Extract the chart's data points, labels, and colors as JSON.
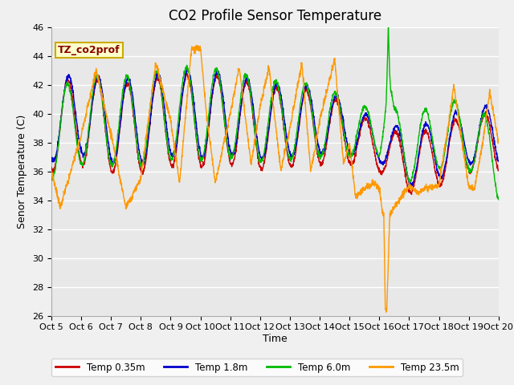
{
  "title": "CO2 Profile Sensor Temperature",
  "ylabel": "Senor Temperature (C)",
  "xlabel": "Time",
  "annotation_text": "TZ_co2prof",
  "annotation_color": "#880000",
  "annotation_bg": "#ffffcc",
  "annotation_border": "#ccaa00",
  "ylim": [
    26,
    46
  ],
  "yticks": [
    26,
    28,
    30,
    32,
    34,
    36,
    38,
    40,
    42,
    44,
    46
  ],
  "xlim": [
    0,
    15
  ],
  "xtick_positions": [
    0,
    1,
    2,
    3,
    4,
    5,
    6,
    7,
    8,
    9,
    10,
    11,
    12,
    13,
    14,
    15
  ],
  "xtick_labels": [
    "Oct 5",
    "Oct 6",
    "Oct 7",
    "Oct 8",
    "Oct 9",
    "Oct 10",
    "Oct 11",
    "Oct 12",
    "Oct 13",
    "Oct 14",
    "Oct 15",
    "Oct 16",
    "Oct 17",
    "Oct 18",
    "Oct 19",
    "Oct 20"
  ],
  "colors": {
    "temp035": "#cc0000",
    "temp18": "#0000cc",
    "temp60": "#00bb00",
    "temp235": "#ff9900"
  },
  "legend_labels": [
    "Temp 0.35m",
    "Temp 1.8m",
    "Temp 6.0m",
    "Temp 23.5m"
  ],
  "plot_bg": "#e8e8e8",
  "fig_bg": "#f0f0f0",
  "grid_color": "#ffffff",
  "title_fontsize": 12,
  "label_fontsize": 9,
  "tick_fontsize": 8
}
